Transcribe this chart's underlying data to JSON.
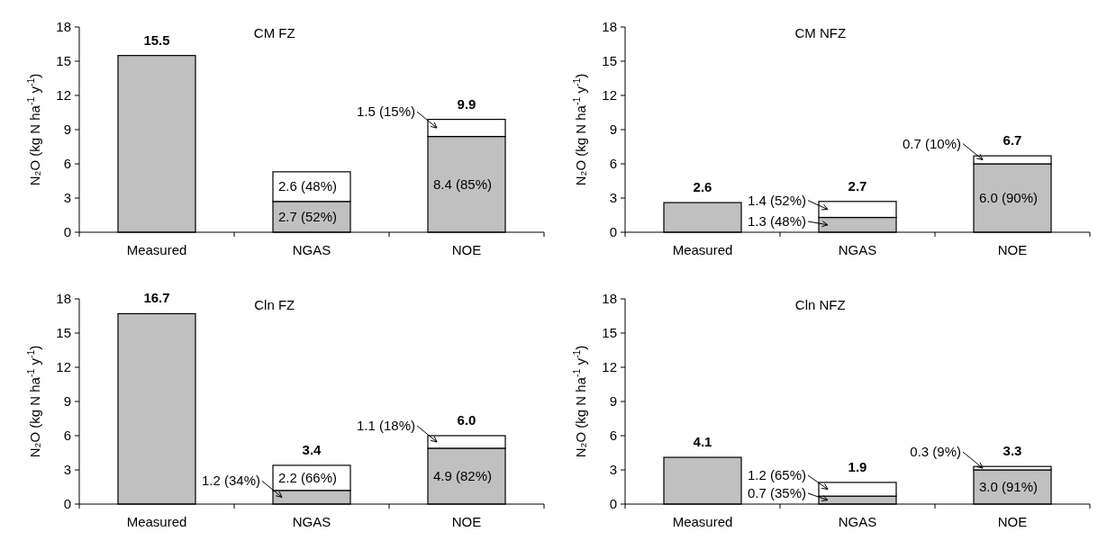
{
  "chart_data": [
    {
      "type": "bar",
      "stacked": true,
      "title": "CM FZ",
      "ylabel": "N₂O (kg N ha$^{-1}$ y$^{-1}$)",
      "categories": [
        "Measured",
        "NGAS",
        "NOE"
      ],
      "ylim": [
        0,
        18
      ],
      "yticks": [
        0,
        3,
        6,
        9,
        12,
        15,
        18
      ],
      "totals": [
        "15.5",
        null,
        "9.9"
      ],
      "series": [
        {
          "color": "#c0c0c0",
          "values": [
            15.5,
            2.7,
            8.4
          ],
          "value_labels": [
            null,
            "2.7 (52%)",
            "8.4 (85%)"
          ]
        },
        {
          "color": "#ffffff",
          "values": [
            null,
            2.6,
            1.5
          ],
          "value_labels": [
            null,
            "2.6 (48%)",
            "1.5 (15%)"
          ]
        }
      ]
    },
    {
      "type": "bar",
      "stacked": true,
      "title": "CM NFZ",
      "ylabel": "N₂O (kg N ha$^{-1}$ y$^{-1}$)",
      "categories": [
        "Measured",
        "NGAS",
        "NOE"
      ],
      "ylim": [
        0,
        18
      ],
      "yticks": [
        0,
        3,
        6,
        9,
        12,
        15,
        18
      ],
      "totals": [
        "2.6",
        "2.7",
        "6.7"
      ],
      "series": [
        {
          "color": "#c0c0c0",
          "values": [
            2.6,
            1.3,
            6.0
          ],
          "value_labels": [
            null,
            "1.3 (48%)",
            "6.0 (90%)"
          ]
        },
        {
          "color": "#ffffff",
          "values": [
            null,
            1.4,
            0.7
          ],
          "value_labels": [
            null,
            "1.4 (52%)",
            "0.7 (10%)"
          ]
        }
      ]
    },
    {
      "type": "bar",
      "stacked": true,
      "title": "Cln FZ",
      "ylabel": "N₂O (kg N ha$^{-1}$ y$^{-1}$)",
      "categories": [
        "Measured",
        "NGAS",
        "NOE"
      ],
      "ylim": [
        0,
        18
      ],
      "yticks": [
        0,
        3,
        6,
        9,
        12,
        15,
        18
      ],
      "totals": [
        "16.7",
        "3.4",
        "6.0"
      ],
      "series": [
        {
          "color": "#c0c0c0",
          "values": [
            16.7,
            1.2,
            4.9
          ],
          "value_labels": [
            null,
            "1.2 (34%)",
            "4.9 (82%)"
          ]
        },
        {
          "color": "#ffffff",
          "values": [
            null,
            2.2,
            1.1
          ],
          "value_labels": [
            null,
            "2.2 (66%)",
            "1.1 (18%)"
          ]
        }
      ]
    },
    {
      "type": "bar",
      "stacked": true,
      "title": "Cln NFZ",
      "ylabel": "N₂O (kg N ha$^{-1}$ y$^{-1}$)",
      "categories": [
        "Measured",
        "NGAS",
        "NOE"
      ],
      "ylim": [
        0,
        18
      ],
      "yticks": [
        0,
        3,
        6,
        9,
        12,
        15,
        18
      ],
      "totals": [
        "4.1",
        "1.9",
        "3.3"
      ],
      "series": [
        {
          "color": "#c0c0c0",
          "values": [
            4.1,
            0.7,
            3.0
          ],
          "value_labels": [
            null,
            "0.7 (35%)",
            "3.0 (91%)"
          ]
        },
        {
          "color": "#ffffff",
          "values": [
            null,
            1.2,
            0.3
          ],
          "value_labels": [
            null,
            "1.2 (65%)",
            "0.3 (9%)"
          ]
        }
      ]
    }
  ]
}
